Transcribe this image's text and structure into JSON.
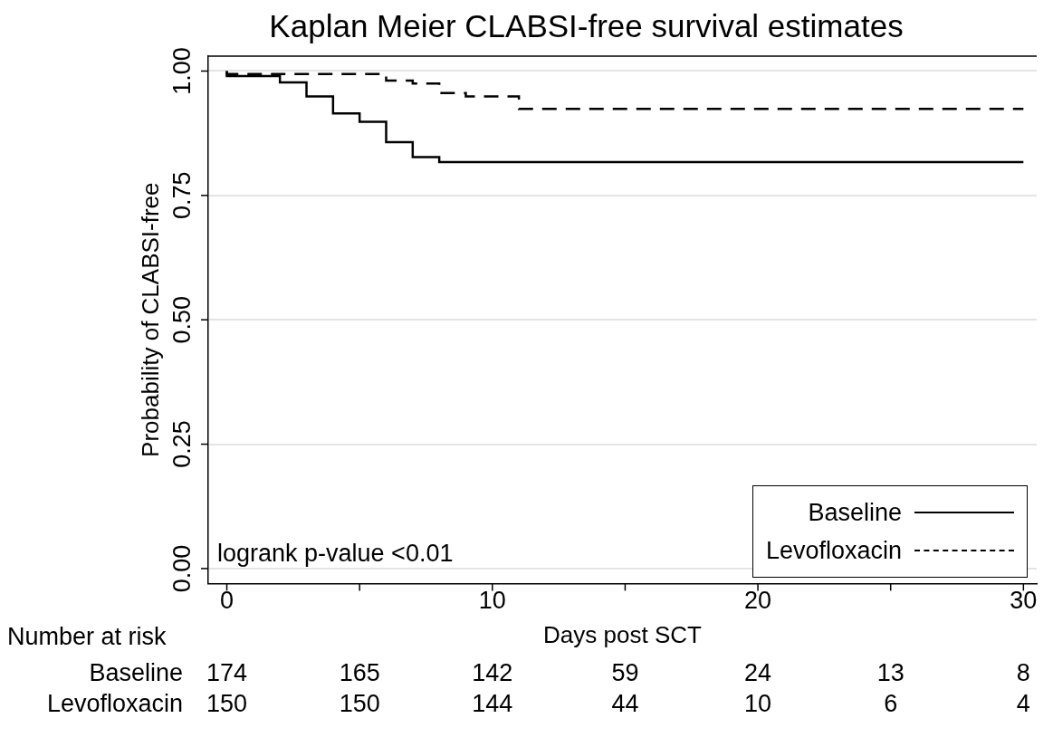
{
  "chart_data": {
    "type": "step",
    "title": "Kaplan Meier CLABSI-free survival estimates",
    "xlabel": "Days post SCT",
    "ylabel": "Probability of CLABSI-free",
    "series": [
      {
        "name": "Baseline",
        "color": "#000000",
        "line_style": "solid",
        "x": [
          0,
          2,
          3,
          4,
          5,
          6,
          7,
          8,
          9,
          30
        ],
        "values": [
          1,
          0.99,
          0.977,
          0.949,
          0.915,
          0.898,
          0.857,
          0.827,
          0.817,
          0.817
        ]
      },
      {
        "name": "Levofloxacin",
        "color": "#000000",
        "line_style": "dashed",
        "x": [
          0,
          6,
          7,
          8,
          9,
          11,
          15,
          30
        ],
        "values": [
          1,
          0.994,
          0.981,
          0.975,
          0.956,
          0.949,
          0.924,
          0.924
        ]
      }
    ],
    "xlim": [
      -0.7,
      30.5
    ],
    "xticks": [
      0,
      {
        "value": 5,
        "label": null
      },
      10,
      {
        "value": 15,
        "label": null
      },
      20,
      {
        "value": 25,
        "label": null
      },
      30
    ],
    "ylim": [
      -0.03,
      1.03
    ],
    "yticks": [
      {
        "value": 0,
        "label": "0.00"
      },
      {
        "value": 0.25,
        "label": "0.25"
      },
      {
        "value": 0.5,
        "label": "0.50"
      },
      {
        "value": 0.75,
        "label": "0.75"
      },
      {
        "value": 1,
        "label": "1.00"
      }
    ],
    "grid": "y",
    "legend": "bottom right",
    "marker": "none",
    "annotations": [
      "logrank p-value <0.01",
      "Number at risk",
      "Baseline",
      "174",
      "165",
      "142",
      "59",
      "24",
      "13",
      "8",
      "Levofloxacin",
      "150",
      "150",
      "144",
      "44",
      "10",
      "6",
      "4"
    ]
  }
}
